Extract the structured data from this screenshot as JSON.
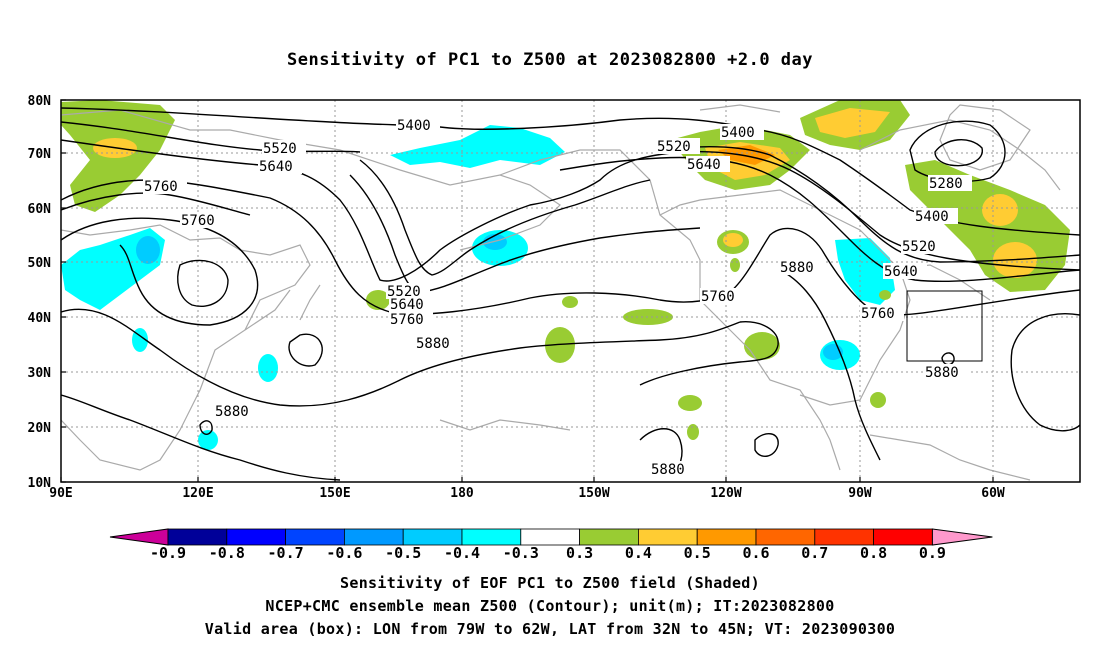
{
  "title": "Sensitivity of PC1 to Z500 at 2023082800 +2.0 day",
  "lat_labels": [
    "80N",
    "70N",
    "60N",
    "50N",
    "40N",
    "30N",
    "20N",
    "10N"
  ],
  "lon_labels": [
    "90E",
    "120E",
    "150E",
    "180",
    "150W",
    "120W",
    "90W",
    "60W"
  ],
  "contour_labels": [
    "5400",
    "5520",
    "5640",
    "5760",
    "5760",
    "5520",
    "5640",
    "5760",
    "5880",
    "5880",
    "5880",
    "5400",
    "5520",
    "5640",
    "5760",
    "5280",
    "5400",
    "5520",
    "5640",
    "5880",
    "5760",
    "5880"
  ],
  "colorbar": {
    "labels": [
      "-0.9",
      "-0.8",
      "-0.7",
      "-0.6",
      "-0.5",
      "-0.4",
      "-0.3",
      "0.3",
      "0.4",
      "0.5",
      "0.6",
      "0.7",
      "0.8",
      "0.9"
    ],
    "colors": [
      "#000099",
      "#0000ff",
      "#0044ff",
      "#0099ff",
      "#00ccff",
      "#00ffff",
      "#ffffff",
      "#99cc33",
      "#ffcc33",
      "#ff9900",
      "#ff6600",
      "#ff3300",
      "#ff0000"
    ],
    "low_end_color": "#cc0099",
    "high_end_color": "#ff99cc"
  },
  "valid_box": {
    "lon_west": "79W",
    "lon_east": "62W",
    "lat_south": "32N",
    "lat_north": "45N"
  },
  "captions": {
    "line1": "Sensitivity of EOF PC1 to Z500 field (Shaded)",
    "line2": "NCEP+CMC ensemble mean Z500 (Contour); unit(m); IT:2023082800",
    "line3": "Valid area (box): LON from 79W to 62W, LAT from 32N to 45N; VT: 2023090300"
  }
}
